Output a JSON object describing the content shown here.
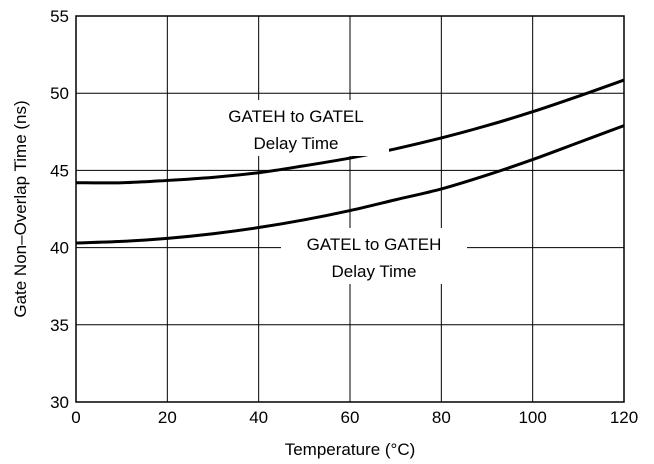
{
  "chart_data": {
    "type": "line",
    "xlabel": "Temperature (°C)",
    "ylabel": "Gate Non–Overlap Time (ns)",
    "xlim": [
      0,
      120
    ],
    "ylim": [
      30,
      55
    ],
    "xticks": [
      "0",
      "20",
      "40",
      "60",
      "80",
      "100",
      "120"
    ],
    "yticks": [
      "30",
      "35",
      "40",
      "45",
      "50",
      "55"
    ],
    "grid": true,
    "series": [
      {
        "x": [
          0,
          10,
          20,
          30,
          40,
          50,
          60,
          70,
          80,
          90,
          100,
          110,
          120
        ],
        "y": [
          44.2,
          44.2,
          44.35,
          44.55,
          44.85,
          45.3,
          45.8,
          46.4,
          47.1,
          47.9,
          48.8,
          49.8,
          50.85
        ]
      },
      {
        "x": [
          0,
          10,
          20,
          30,
          40,
          50,
          60,
          70,
          80,
          90,
          100,
          110,
          120
        ],
        "y": [
          40.3,
          40.4,
          40.6,
          40.9,
          41.3,
          41.8,
          42.4,
          43.1,
          43.8,
          44.7,
          45.7,
          46.8,
          47.9
        ]
      }
    ],
    "annotations": [
      {
        "lines": [
          "GATEH to GATEL",
          "Delay Time"
        ]
      },
      {
        "lines": [
          "GATEL to GATEH",
          "Delay Time"
        ]
      }
    ]
  }
}
